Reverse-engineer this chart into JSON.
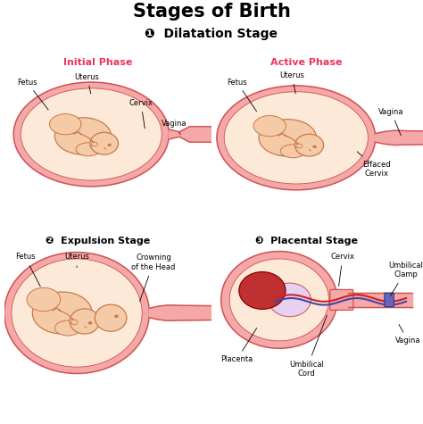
{
  "title": "Stages of Birth",
  "bg": "#ffffff",
  "title_fs": 15,
  "stage1": "❶  Dilatation Stage",
  "stage2": "❷  Expulsion Stage",
  "stage3": "❸  Placental Stage",
  "phase1": "Initial Phase",
  "phase2": "Active Phase",
  "pink_label": "#e8365d",
  "black": "#000000",
  "skin": "#f5cba7",
  "skin_dark": "#e8a87c",
  "skin_line": "#c8784a",
  "uterus_fill": "#f5a8a8",
  "uterus_line": "#d05050",
  "vagina_fill": "#f5a8a8",
  "amniotic": "#fce9d8",
  "placenta": "#c03030",
  "cord_r": "#cc2222",
  "cord_b": "#4444aa",
  "clamp": "#6666bb",
  "lfs": 6.0
}
